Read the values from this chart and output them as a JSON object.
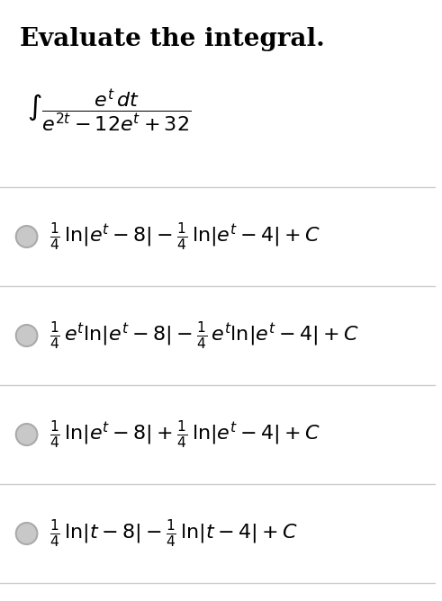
{
  "title": "Evaluate the integral.",
  "bg_color": "#ffffff",
  "text_color": "#000000",
  "gray_circle_color": "#c8c8c8",
  "integral_expr": "$\\int \\dfrac{e^t\\, dt}{e^{2t} - 12e^t + 32}$",
  "options": [
    "$\\frac{1}{4}\\, \\ln|e^t - 8| - \\frac{1}{4}\\, \\ln|e^t - 4| + C$",
    "$\\frac{1}{4}\\, e^t \\ln|e^t - 8| - \\frac{1}{4}\\, e^t \\ln|e^t - 4| + C$",
    "$\\frac{1}{4}\\, \\ln|e^t - 8| + \\frac{1}{4}\\, \\ln|e^t - 4| + C$",
    "$\\frac{1}{4}\\, \\ln|t - 8| - \\frac{1}{4}\\, \\ln|t - 4| + C$"
  ],
  "divider_color": "#cccccc",
  "title_fontsize": 20,
  "option_fontsize": 16,
  "integral_fontsize": 16
}
